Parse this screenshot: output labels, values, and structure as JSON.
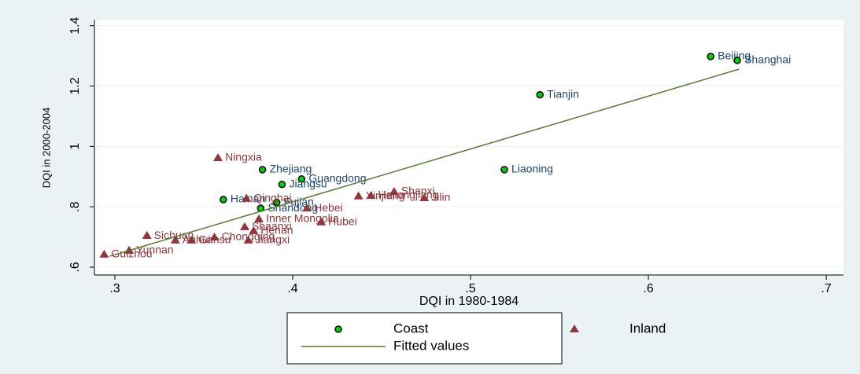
{
  "chart_data": {
    "type": "scatter",
    "xlabel": "DQI in 1980-1984",
    "ylabel": "DQI in 2000-2004",
    "xlim": [
      0.2885,
      0.7097
    ],
    "ylim": [
      0.574,
      1.42
    ],
    "xticks": [
      {
        "value": 0.3,
        "label": ".3"
      },
      {
        "value": 0.4,
        "label": ".4"
      },
      {
        "value": 0.5,
        "label": ".5"
      },
      {
        "value": 0.6,
        "label": ".6"
      },
      {
        "value": 0.7,
        "label": ".7"
      }
    ],
    "yticks": [
      {
        "value": 0.6,
        "label": ".6"
      },
      {
        "value": 0.8,
        "label": ".8"
      },
      1,
      {
        "value": 1.2,
        "label": "1.2"
      },
      {
        "value": 1.4,
        "label": "1.4"
      }
    ],
    "grid": true,
    "series": [
      {
        "name": "Coast",
        "type": "scatter",
        "marker": "circle",
        "color": "#00d000",
        "label_color": "#1a476f",
        "labels": [
          "Beijing",
          "Shanghai",
          "Tianjin",
          "Liaoning",
          "Zhejiang",
          "Guangdong",
          "Jiangsu",
          "Hainan",
          "Fujian",
          "Shandong"
        ],
        "x": [
          0.635,
          0.65,
          0.539,
          0.519,
          0.383,
          0.405,
          0.394,
          0.361,
          0.391,
          0.382
        ],
        "values": [
          1.298,
          1.285,
          1.171,
          0.923,
          0.923,
          0.892,
          0.874,
          0.824,
          0.814,
          0.795
        ]
      },
      {
        "name": "Inland",
        "type": "scatter",
        "marker": "triangle",
        "color": "#90353b",
        "label_color": "#90353b",
        "labels": [
          "Ningxia",
          "Qinghai",
          "Xinjiang",
          "Heilongjiang",
          "Shanxi",
          "Jilin",
          "Hebei",
          "Inner Mongolia",
          "Hubei",
          "Shaanxi",
          "Henan",
          "Sichuan",
          "Chongqing",
          "Anhui",
          "Gansu",
          "Jiangxi",
          "Yunnan",
          "Guizhou"
        ],
        "x": [
          0.358,
          0.374,
          0.437,
          0.444,
          0.457,
          0.474,
          0.408,
          0.381,
          0.416,
          0.373,
          0.378,
          0.318,
          0.356,
          0.334,
          0.343,
          0.375,
          0.308,
          0.294
        ],
        "values": [
          0.962,
          0.827,
          0.835,
          0.837,
          0.85,
          0.829,
          0.795,
          0.759,
          0.749,
          0.733,
          0.72,
          0.704,
          0.699,
          0.689,
          0.689,
          0.689,
          0.655,
          0.642
        ]
      },
      {
        "name": "Fitted values",
        "type": "line",
        "color": "#5a7a32",
        "x": [
          0.297,
          0.651
        ],
        "values": [
          0.636,
          1.256
        ]
      }
    ]
  }
}
